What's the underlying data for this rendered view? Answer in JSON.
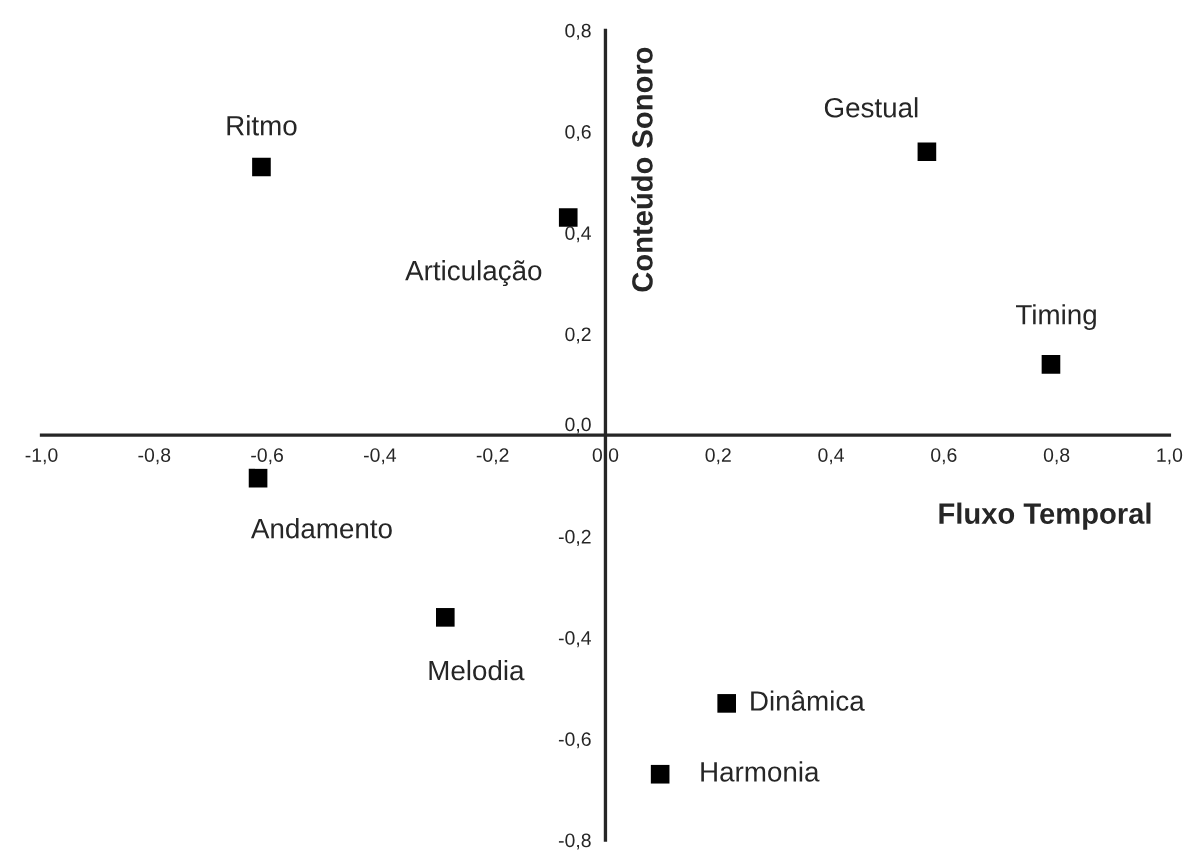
{
  "chart_data": {
    "type": "scatter",
    "xlabel": "Fluxo Temporal",
    "ylabel": "Conteúdo Sonoro",
    "series": [
      {
        "color": "#000000",
        "x": [
          -0.61,
          -0.066,
          0.57,
          0.79,
          -0.616,
          -0.284,
          0.215,
          0.097
        ],
        "values": [
          0.53,
          0.43,
          0.56,
          0.14,
          -0.085,
          -0.36,
          -0.53,
          -0.67
        ]
      }
    ],
    "annotations": [
      {
        "text": "Ritmo",
        "x": -0.61,
        "y": 0.53
      },
      {
        "text": "Articulação",
        "x": -0.066,
        "y": 0.43
      },
      {
        "text": "Gestual",
        "x": 0.57,
        "y": 0.56
      },
      {
        "text": "Timing",
        "x": 0.79,
        "y": 0.14
      },
      {
        "text": "Andamento",
        "x": -0.616,
        "y": -0.085
      },
      {
        "text": "Melodia",
        "x": -0.284,
        "y": -0.36
      },
      {
        "text": "Dinâmica",
        "x": 0.215,
        "y": -0.53
      },
      {
        "text": "Harmonia",
        "x": 0.097,
        "y": -0.67
      }
    ],
    "xlim": [
      -1.0,
      1.0
    ],
    "ylim": [
      -0.8,
      0.8
    ],
    "xticks": [
      {
        "value": -1.0,
        "label": "-1,0"
      },
      {
        "value": -0.8,
        "label": "-0,8"
      },
      {
        "value": -0.6,
        "label": "-0,6"
      },
      {
        "value": -0.4,
        "label": "-0,4"
      },
      {
        "value": -0.2,
        "label": "-0,2"
      },
      {
        "value": 0.0,
        "label": "0,0"
      },
      {
        "value": 0.2,
        "label": "0,2"
      },
      {
        "value": 0.4,
        "label": "0,4"
      },
      {
        "value": 0.6,
        "label": "0,6"
      },
      {
        "value": 0.8,
        "label": "0,8"
      },
      {
        "value": 1.0,
        "label": "1,0"
      }
    ],
    "yticks": [
      {
        "value": -0.8,
        "label": "-0,8"
      },
      {
        "value": -0.6,
        "label": "-0,6"
      },
      {
        "value": -0.4,
        "label": "-0,4"
      },
      {
        "value": -0.2,
        "label": "-0,2"
      },
      {
        "value": 0.0,
        "label": "0,0"
      },
      {
        "value": 0.2,
        "label": "0,2"
      },
      {
        "value": 0.4,
        "label": "0,4"
      },
      {
        "value": 0.6,
        "label": "0,6"
      },
      {
        "value": 0.8,
        "label": "0,8"
      }
    ],
    "marker": "square",
    "grid": false,
    "legend": false
  }
}
